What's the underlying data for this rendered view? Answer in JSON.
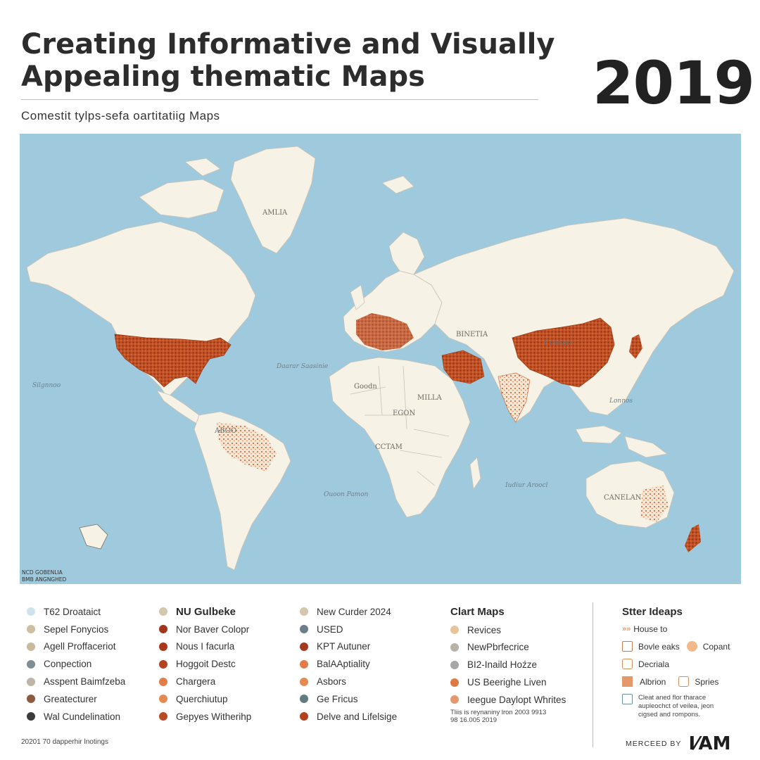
{
  "header": {
    "title_line1": "Creating Informative and Visually",
    "title_line2": "Appealing thematic Maps",
    "year": "2019",
    "subtitle": "Comestit tylps-sefa oartitatiig Maps"
  },
  "map": {
    "labels": {
      "greenland": "AMLIA",
      "russia": "BINETIA",
      "china": "Cnengor",
      "africa_north": "Goodn",
      "africa_mid": "MILLA",
      "africa_east": "EGON",
      "africa_central": "CCTAM",
      "australia": "CANELAN",
      "atlantic": "Daarar Saasinie",
      "pacific_left": "Silgnnoo",
      "indian_ocean": "Iudiur Aroocl",
      "south_atlantic": "Ouoon Pamon",
      "south_china": "Lonnos",
      "south_america": "ABOO",
      "corner_line1": "NCD GOBENLIA",
      "corner_line2": "BMB ANGNGHED"
    },
    "colors": {
      "ocean": "#9fcadd",
      "land": "#f7f2e6",
      "border": "#c9c2b4",
      "highlight_dark": "#b4441e",
      "highlight": "#c8582a",
      "highlight_light": "#de8a55"
    }
  },
  "legend": {
    "col1": [
      {
        "label": "T62 Droataict",
        "color": "#cfe3ec"
      },
      {
        "label": "Sepel Fonycios",
        "color": "#cdbfa2"
      },
      {
        "label": "Agell Proffaceriot",
        "color": "#c7bb9b"
      },
      {
        "label": "Conpection",
        "color": "#7d8f94"
      },
      {
        "label": "Asspent Baimfzeba",
        "color": "#bdb6a8"
      },
      {
        "label": "Greatecturer",
        "color": "#8c5a3e"
      },
      {
        "label": "Wal Cundelination",
        "color": "#3b3b3b"
      }
    ],
    "col2_head": {
      "label": "NU Gulbeke",
      "color": "#d3c7ad"
    },
    "col2": [
      {
        "label": "Nor Baver Colopr",
        "color": "#a1361c"
      },
      {
        "label": "Nous I facurla",
        "color": "#a9381c"
      },
      {
        "label": "Hoggoit Destc",
        "color": "#b2441f"
      },
      {
        "label": "Chargera",
        "color": "#e27d49"
      },
      {
        "label": "Querchiutup",
        "color": "#e58a52"
      },
      {
        "label": "Gepyes Witherihp",
        "color": "#b84a25"
      }
    ],
    "col3": [
      {
        "label": "New Curder 2024",
        "color": "#d3c7ad"
      },
      {
        "label": "USED",
        "color": "#6b7f88"
      },
      {
        "label": "KPT Autuner",
        "color": "#a33a1f"
      },
      {
        "label": "BalAAptiality",
        "color": "#e27d49"
      },
      {
        "label": "Asbors",
        "color": "#e58a52"
      },
      {
        "label": "Ge Fricus",
        "color": "#5f7c80"
      },
      {
        "label": "Delve and Lifelsige",
        "color": "#b4401d"
      }
    ],
    "col4_head": "Clart Maps",
    "col4": [
      {
        "label": "Revices",
        "color": "#e9c49a"
      },
      {
        "label": "NewPbrfecrice",
        "color": "#b8b2a8"
      },
      {
        "label": "BI2-Inaild Hoźze",
        "color": "#a6a6a6"
      },
      {
        "label": "US Beerighe Liven",
        "color": "#e07a44"
      },
      {
        "label": "Ieegue Daylopt Whrites",
        "color": "#e59a6e"
      }
    ],
    "col4_note_line1": "Tliis is reynaniny lron 2003 9913",
    "col4_note_line2": "98 16.005  2019"
  },
  "tips": {
    "head": "Stter Ideaps",
    "row1": "House to",
    "row2a": "Bovle eaks",
    "row2b": "Copant",
    "row3": "Decriala",
    "row4a": "Albrion",
    "row4b": "Spries",
    "note_line1": "Cleat aned flor tharace",
    "note_line2": "aupleochct of veilea, jeon",
    "note_line3": "cigsed and rompons."
  },
  "footer": {
    "left": "20201 70 dapperhir lnotings",
    "by": "MERCEED BY",
    "brand": "I⁄AM"
  }
}
